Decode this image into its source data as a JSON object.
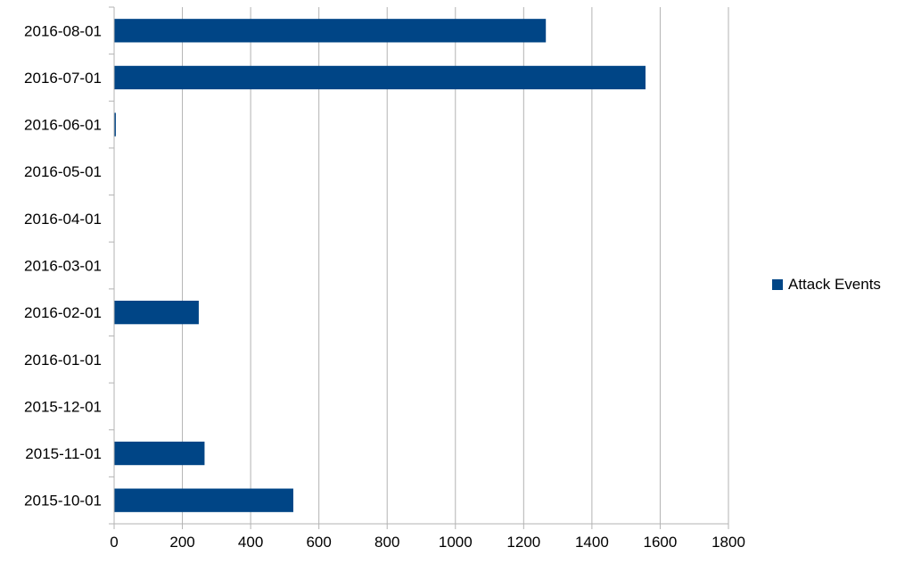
{
  "chart_data": {
    "type": "bar",
    "orientation": "horizontal",
    "categories": [
      "2015-10-01",
      "2015-11-01",
      "2015-12-01",
      "2016-01-01",
      "2016-02-01",
      "2016-03-01",
      "2016-04-01",
      "2016-05-01",
      "2016-06-01",
      "2016-07-01",
      "2016-08-01"
    ],
    "series": [
      {
        "name": "Attack Events",
        "values": [
          525,
          265,
          0,
          0,
          248,
          0,
          0,
          0,
          5,
          1557,
          1265
        ],
        "color": "#004586"
      }
    ],
    "xlim": [
      0,
      1800
    ],
    "ticks": [
      "0",
      "200",
      "400",
      "600",
      "800",
      "1000",
      "1200",
      "1400",
      "1600",
      "1800"
    ],
    "grid": "vertical",
    "legend_position": "right"
  }
}
